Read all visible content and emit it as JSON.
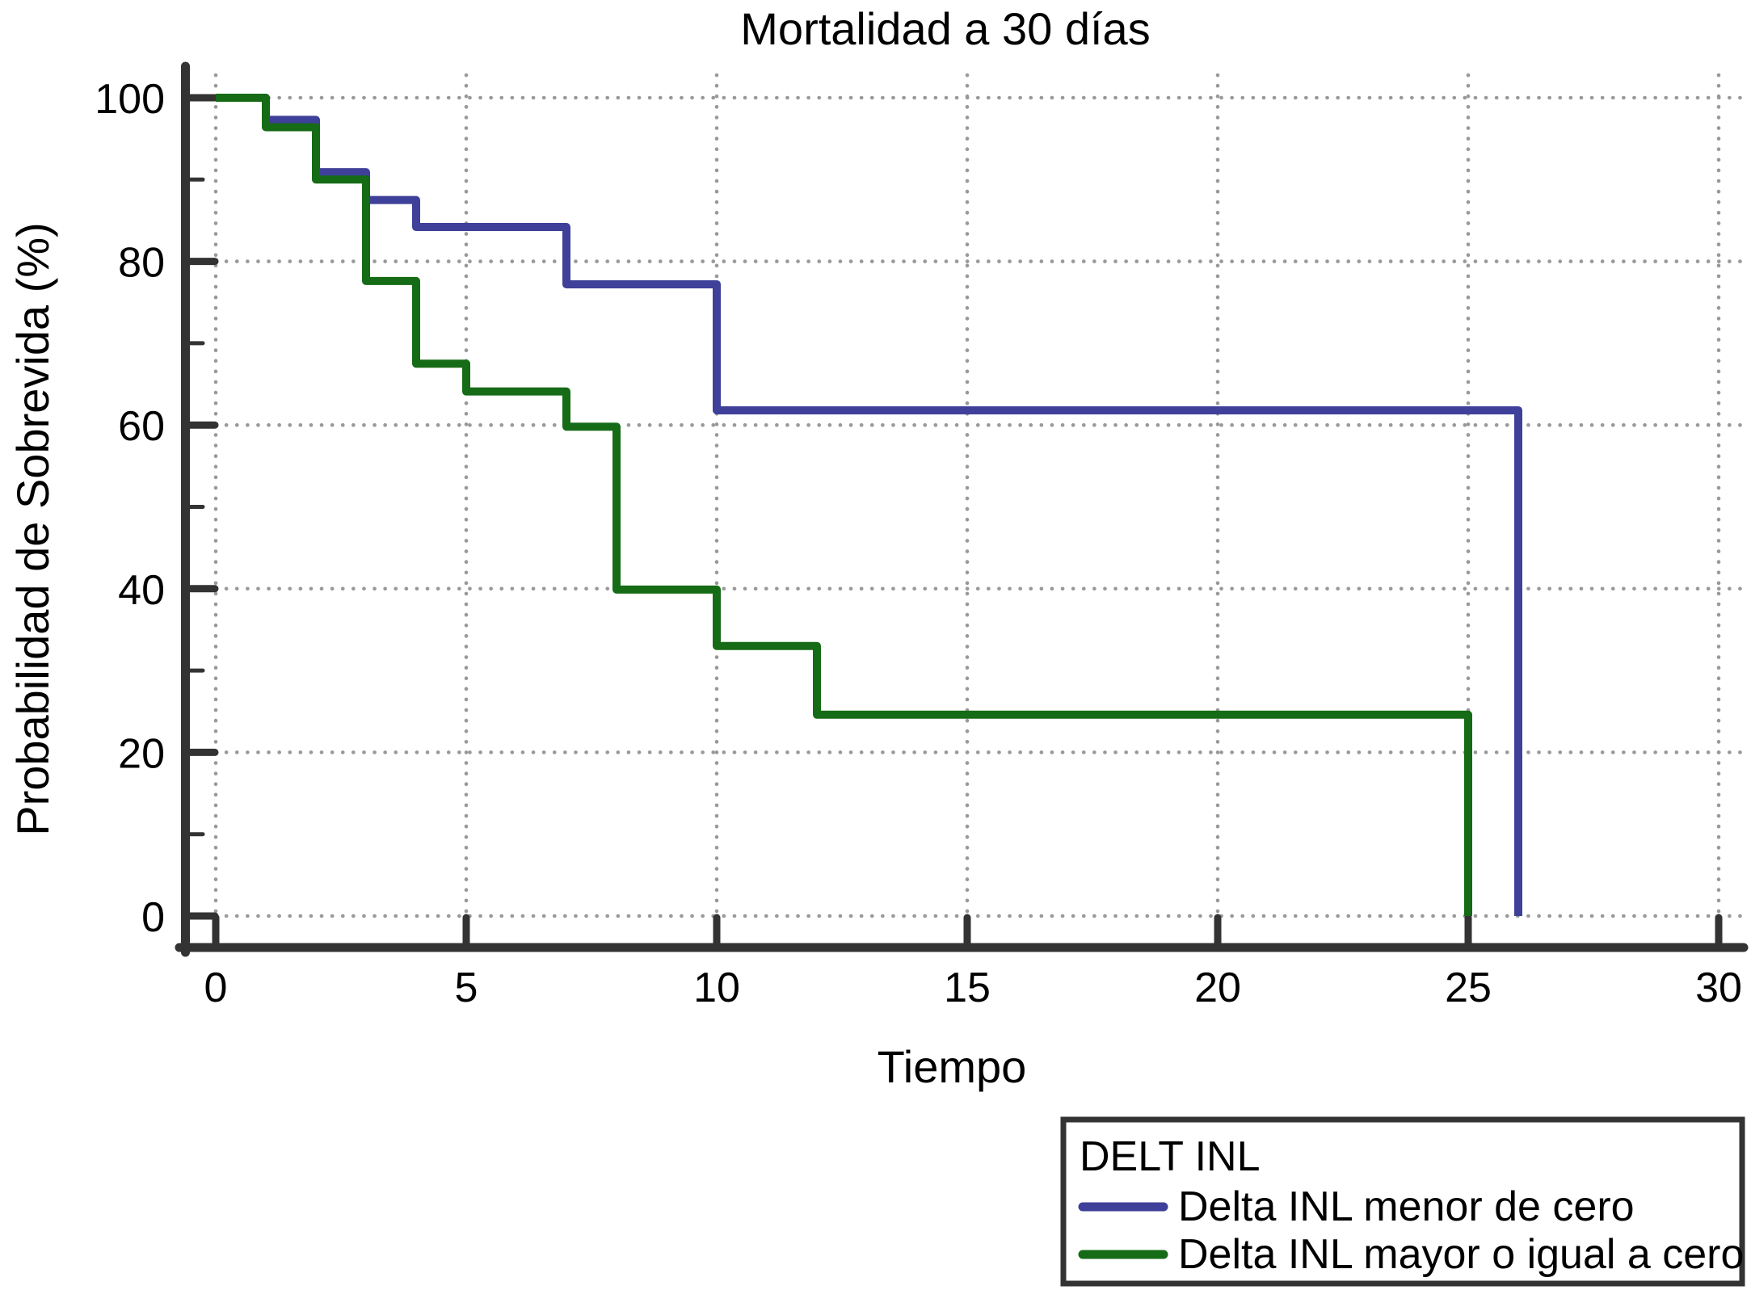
{
  "figure": {
    "title": "Mortalidad a 30 días",
    "xlabel": "Tiempo",
    "ylabel": "Probabilidad de Sobrevida (%)"
  },
  "legend": {
    "title": "DELT INL",
    "items": [
      {
        "label": "Delta INL menor de cero",
        "color": "#3E4099"
      },
      {
        "label": "Delta INL mayor o igual a cero",
        "color": "#166B16"
      }
    ]
  },
  "colors": {
    "axis": "#333333",
    "grid": "#999999",
    "background": "#FFFFFF",
    "text": "#000000",
    "blue_series": "#3E4099",
    "green_series": "#166B16"
  },
  "chart_data": {
    "type": "line",
    "subtype": "kaplan-meier-step",
    "title": "Mortalidad a 30 días",
    "xlabel": "Tiempo",
    "ylabel": "Probabilidad de Sobrevida (%)",
    "xlim": [
      0,
      30
    ],
    "ylim": [
      0,
      100
    ],
    "x_ticks": [
      0,
      5,
      10,
      15,
      20,
      25,
      30
    ],
    "y_ticks": [
      0,
      20,
      40,
      60,
      80,
      100
    ],
    "y_minor_ticks": [
      10,
      30,
      50,
      70,
      90
    ],
    "grid": "dotted",
    "legend_title": "DELT INL",
    "legend_position": "bottom-right-outside",
    "series": [
      {
        "name": "Delta INL menor de cero",
        "color": "#3E4099",
        "steps": [
          [
            0,
            100
          ],
          [
            1,
            97.3
          ],
          [
            2,
            90.9
          ],
          [
            3,
            87.5
          ],
          [
            4,
            84.2
          ],
          [
            7,
            77.2
          ],
          [
            10,
            61.8
          ],
          [
            26,
            0
          ]
        ]
      },
      {
        "name": "Delta INL mayor o igual a cero",
        "color": "#166B16",
        "steps": [
          [
            0,
            100
          ],
          [
            1,
            96.4
          ],
          [
            2,
            90.0
          ],
          [
            3,
            77.6
          ],
          [
            4,
            67.5
          ],
          [
            5,
            64.1
          ],
          [
            7,
            59.8
          ],
          [
            8,
            39.9
          ],
          [
            10,
            33.0
          ],
          [
            12,
            24.6
          ],
          [
            25,
            0
          ]
        ]
      }
    ]
  }
}
